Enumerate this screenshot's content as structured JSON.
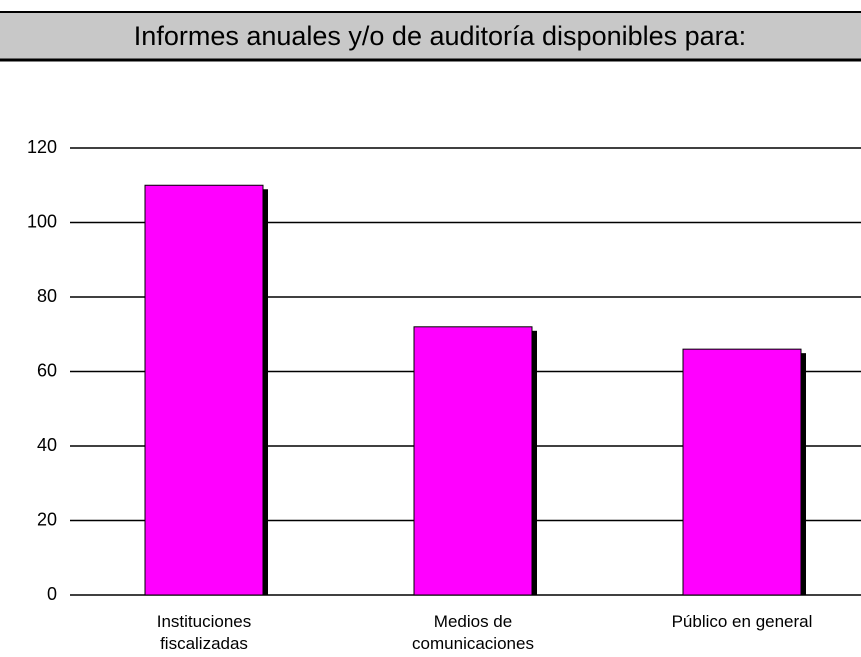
{
  "chart_data": {
    "type": "bar",
    "title": "Informes anuales y/o de auditoría disponibles para:",
    "categories": [
      "Instituciones\nfiscalizadas",
      "Medios de\ncomunicaciones",
      "Público en general"
    ],
    "values": [
      110,
      72,
      66
    ],
    "color": "#ff00ff",
    "ylim": [
      0,
      120
    ],
    "yticks": [
      0,
      20,
      40,
      60,
      80,
      100,
      120
    ],
    "grid": true
  }
}
